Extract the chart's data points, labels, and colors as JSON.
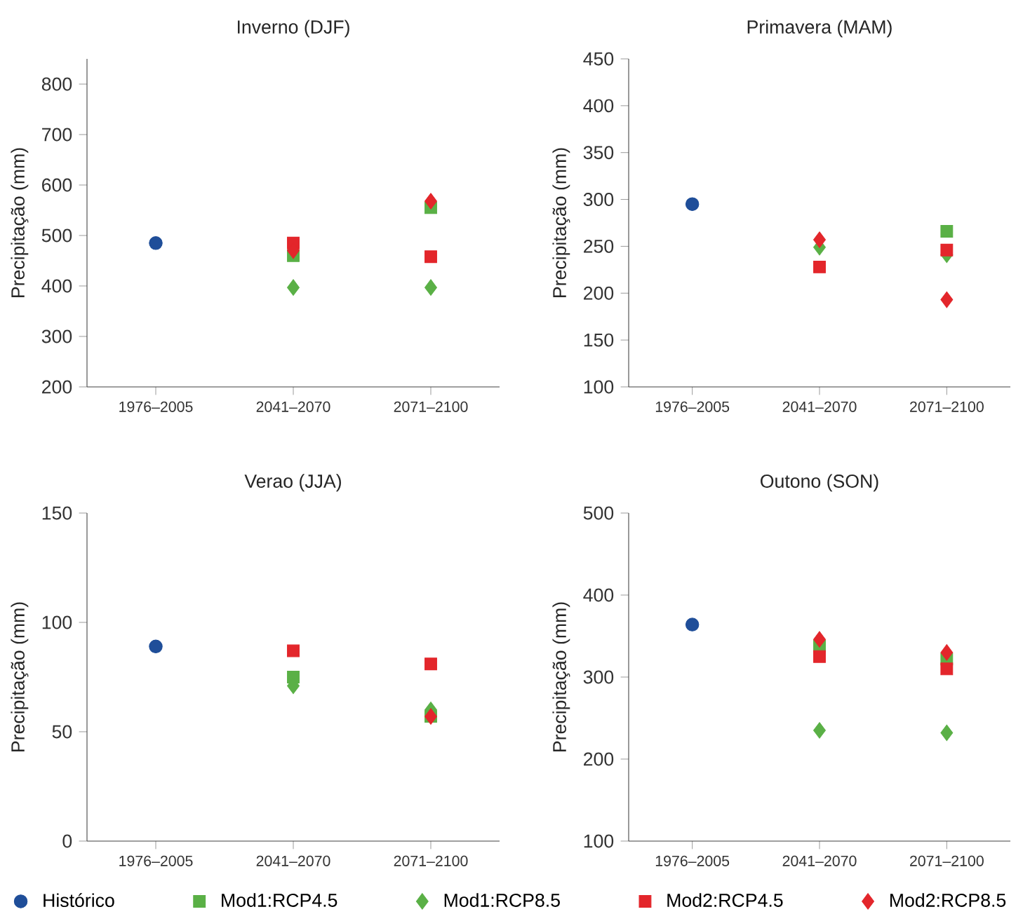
{
  "chart_data": [
    {
      "type": "scatter",
      "title": "Inverno (DJF)",
      "ylabel": "Precipitação (mm)",
      "categories": [
        "1976–2005",
        "2041–2070",
        "2071–2100"
      ],
      "ylim": [
        200,
        850
      ],
      "yticks": [
        200,
        300,
        400,
        500,
        600,
        700,
        800
      ],
      "grid": false,
      "series": [
        {
          "color": "#1f4e99",
          "marker": "circle",
          "values": [
            485,
            null,
            null
          ]
        },
        {
          "color": "#5ab046",
          "marker": "square",
          "values": [
            null,
            460,
            555
          ]
        },
        {
          "color": "#5ab046",
          "marker": "diamond",
          "values": [
            null,
            397,
            397
          ]
        },
        {
          "color": "#e3262b",
          "marker": "square",
          "values": [
            null,
            485,
            458
          ]
        },
        {
          "color": "#e3262b",
          "marker": "diamond",
          "values": [
            null,
            470,
            568
          ]
        }
      ]
    },
    {
      "type": "scatter",
      "title": "Primavera (MAM)",
      "ylabel": "Precipitação (mm)",
      "categories": [
        "1976–2005",
        "2041–2070",
        "2071–2100"
      ],
      "ylim": [
        100,
        450
      ],
      "yticks": [
        100,
        150,
        200,
        250,
        300,
        350,
        400,
        450
      ],
      "grid": false,
      "series": [
        {
          "color": "#1f4e99",
          "marker": "circle",
          "values": [
            295,
            null,
            null
          ]
        },
        {
          "color": "#5ab046",
          "marker": "square",
          "values": [
            null,
            null,
            266
          ]
        },
        {
          "color": "#5ab046",
          "marker": "diamond",
          "values": [
            null,
            249,
            241
          ]
        },
        {
          "color": "#e3262b",
          "marker": "square",
          "values": [
            null,
            228,
            246
          ]
        },
        {
          "color": "#e3262b",
          "marker": "diamond",
          "values": [
            null,
            257,
            193
          ]
        }
      ]
    },
    {
      "type": "scatter",
      "title": "Verao (JJA)",
      "ylabel": "Precipitação (mm)",
      "categories": [
        "1976–2005",
        "2041–2070",
        "2071–2100"
      ],
      "ylim": [
        0,
        150
      ],
      "yticks": [
        0,
        50,
        100,
        150
      ],
      "grid": false,
      "series": [
        {
          "color": "#1f4e99",
          "marker": "circle",
          "values": [
            89,
            null,
            null
          ]
        },
        {
          "color": "#5ab046",
          "marker": "square",
          "values": [
            null,
            75,
            57
          ]
        },
        {
          "color": "#5ab046",
          "marker": "diamond",
          "values": [
            null,
            71,
            60
          ]
        },
        {
          "color": "#e3262b",
          "marker": "square",
          "values": [
            null,
            87,
            81
          ]
        },
        {
          "color": "#e3262b",
          "marker": "diamond",
          "values": [
            null,
            null,
            57
          ]
        }
      ]
    },
    {
      "type": "scatter",
      "title": "Outono (SON)",
      "ylabel": "Precipitação (mm)",
      "categories": [
        "1976–2005",
        "2041–2070",
        "2071–2100"
      ],
      "ylim": [
        100,
        500
      ],
      "yticks": [
        100,
        200,
        300,
        400,
        500
      ],
      "grid": false,
      "legend": "bottom",
      "series": [
        {
          "name": "Histórico",
          "color": "#1f4e99",
          "marker": "circle",
          "values": [
            364,
            null,
            null
          ]
        },
        {
          "name": "Mod1:RCP4.5",
          "color": "#5ab046",
          "marker": "square",
          "values": [
            null,
            338,
            322
          ]
        },
        {
          "name": "Mod1:RCP8.5",
          "color": "#5ab046",
          "marker": "diamond",
          "values": [
            null,
            235,
            232
          ]
        },
        {
          "name": "Mod2:RCP4.5",
          "color": "#e3262b",
          "marker": "square",
          "values": [
            null,
            325,
            310
          ]
        },
        {
          "name": "Mod2:RCP8.5",
          "color": "#e3262b",
          "marker": "diamond",
          "values": [
            null,
            346,
            330
          ]
        }
      ]
    }
  ]
}
